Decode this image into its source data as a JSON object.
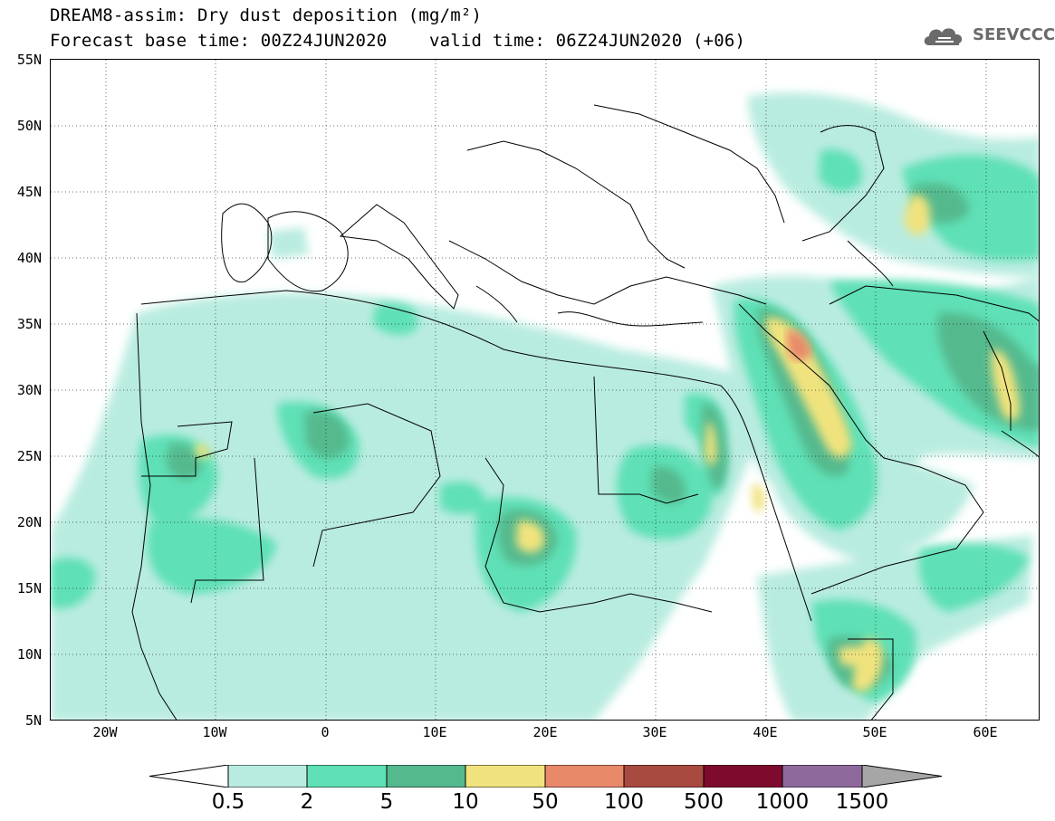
{
  "title": {
    "line1": "DREAM8-assim: Dry dust deposition (mg/m²)",
    "line2": "Forecast base time: 00Z24JUN2020    valid time: 06Z24JUN2020 (+06)"
  },
  "logo": {
    "text": "SEEVCCC",
    "icon": "cloud-icon"
  },
  "map": {
    "projection": "lat-lon",
    "lon_range": [
      -25,
      65
    ],
    "lat_range": [
      5,
      55
    ],
    "lat_labels": [
      "55N",
      "50N",
      "45N",
      "40N",
      "35N",
      "30N",
      "25N",
      "20N",
      "15N",
      "10N",
      "5N"
    ],
    "lon_labels": [
      "20W",
      "10W",
      "0",
      "10E",
      "20E",
      "30E",
      "40E",
      "50E",
      "60E"
    ],
    "grid": "dotted",
    "major_plume": "Iraq / Arabian Peninsula",
    "high_values_region": "northern Iraq"
  },
  "legend": {
    "labels": [
      "0.5",
      "2",
      "5",
      "10",
      "50",
      "100",
      "500",
      "1000",
      "1500"
    ],
    "colors": [
      "#ffffff",
      "#b9ece0",
      "#5fe0b6",
      "#55b98e",
      "#f0e37e",
      "#e8896a",
      "#a94a40",
      "#7e0b2d",
      "#8e6a9c",
      "#a6a6a6"
    ]
  }
}
